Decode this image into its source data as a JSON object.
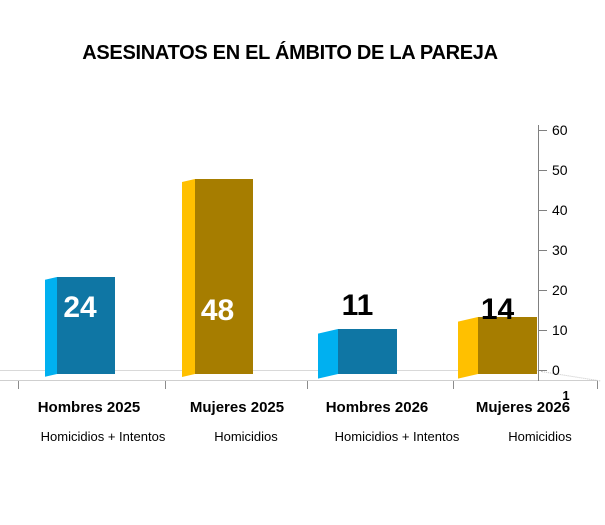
{
  "chart_data": {
    "type": "bar",
    "title": "ASESINATOS EN EL ÁMBITO DE LA PAREJA",
    "categories": [
      "Hombres 2025",
      "Mujeres 2025",
      "Hombres 2026",
      "Mujeres 2026"
    ],
    "subcategories": [
      "Homicidios + Intentos",
      "Homicidios",
      "Homicidios + Intentos",
      "Homicidios"
    ],
    "values": [
      24,
      48,
      11,
      14
    ],
    "value_label_positions": [
      "inside",
      "inside",
      "above",
      "above"
    ],
    "bar_color_names": [
      "blue",
      "gold",
      "blue",
      "gold"
    ],
    "colors": {
      "blue_front": "#0F76A4",
      "blue_side": "#00B0F0",
      "gold_front": "#A67D00",
      "gold_side": "#FFC000",
      "value_label_inside": "#FFFFFF",
      "value_label_outside": "#000000",
      "axis_line": "#808080",
      "floor_line": "#D9D9D9"
    },
    "ylim": [
      0,
      60
    ],
    "yticks": [
      0,
      10,
      20,
      30,
      40,
      50,
      60
    ],
    "series_axis_label": "1",
    "legend": "none",
    "grid": "off",
    "style": "3d-column"
  }
}
